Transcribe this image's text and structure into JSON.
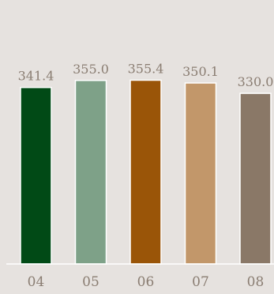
{
  "chart_data": {
    "type": "bar",
    "categories": [
      "04",
      "05",
      "06",
      "07",
      "08"
    ],
    "values": [
      341.4,
      355.0,
      355.4,
      350.1,
      330.0
    ],
    "value_labels": [
      "341.4",
      "355.0",
      "355.4",
      "350.1",
      "330.0"
    ],
    "colors": [
      "#014a16",
      "#7ea188",
      "#9a5508",
      "#c2976a",
      "#8a7867"
    ],
    "title": "",
    "xlabel": "",
    "ylabel": "",
    "ylim": [
      0,
      380
    ],
    "grid": false,
    "legend": "none",
    "background": "#e6e2df",
    "axis_color": "#ffffff",
    "label_color": "#8a7d72"
  }
}
